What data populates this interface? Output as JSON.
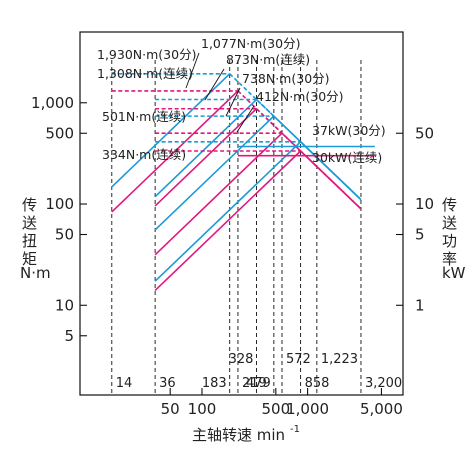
{
  "chart_data": {
    "type": "line",
    "x_scale": "log",
    "y_scale": "log",
    "xlabel_main": "主轴转速 min",
    "xlabel_sup": "-1",
    "ylabel_left": [
      "传",
      "送",
      "扭",
      "矩"
    ],
    "ylabel_left_unit": "N·m",
    "ylabel_right": [
      "传",
      "送",
      "功",
      "率"
    ],
    "ylabel_right_unit": "kW",
    "xlim": [
      7,
      8000
    ],
    "ylim_torque": [
      1.3,
      5000
    ],
    "ylim_power": [
      0.13,
      500
    ],
    "x_ticks": [
      {
        "value": 50,
        "label": "50"
      },
      {
        "value": 100,
        "label": "100"
      },
      {
        "value": 500,
        "label": "500"
      },
      {
        "value": 1000,
        "label": "1,000"
      },
      {
        "value": 5000,
        "label": "5,000"
      }
    ],
    "y_ticks_left": [
      {
        "value": 5,
        "label": "5"
      },
      {
        "value": 10,
        "label": "10"
      },
      {
        "value": 50,
        "label": "50"
      },
      {
        "value": 100,
        "label": "100"
      },
      {
        "value": 500,
        "label": "500"
      },
      {
        "value": 1000,
        "label": "1,000"
      }
    ],
    "y_ticks_right": [
      {
        "value": 1,
        "label": "1"
      },
      {
        "value": 5,
        "label": "5"
      },
      {
        "value": 10,
        "label": "10"
      },
      {
        "value": 50,
        "label": "50"
      }
    ],
    "speed_marks": [
      {
        "value": 14,
        "label": "14",
        "row": "bottom"
      },
      {
        "value": 36,
        "label": "36",
        "row": "bottom"
      },
      {
        "value": 183,
        "label": "183",
        "row": "bottom"
      },
      {
        "value": 219,
        "label": "219",
        "row": "bottom"
      },
      {
        "value": 479,
        "label": "479",
        "row": "bottom"
      },
      {
        "value": 858,
        "label": "858",
        "row": "bottom"
      },
      {
        "value": 3200,
        "label": "3,200",
        "row": "bottom"
      },
      {
        "value": 328,
        "label": "328",
        "row": "top"
      },
      {
        "value": 572,
        "label": "572",
        "row": "top"
      },
      {
        "value": 1223,
        "label": "1,223",
        "row": "top"
      }
    ],
    "series": [
      {
        "name": "1,930N·m(30分)",
        "mode": "30min",
        "torque": 1930,
        "corner": 183,
        "ramp_from": 14
      },
      {
        "name": "1,308N·m(连续)",
        "mode": "continuous",
        "torque": 1308,
        "corner": 219,
        "ramp_from": 14
      },
      {
        "name": "1,077N·m(30分)",
        "mode": "30min",
        "torque": 1077,
        "corner": 328,
        "ramp_from": 36
      },
      {
        "name": "873N·m(连续)",
        "mode": "continuous",
        "torque": 873,
        "corner": 328,
        "ramp_from": 36
      },
      {
        "name": "738N·m(30分)",
        "mode": "30min",
        "torque": 738,
        "corner": 479,
        "ramp_from": 36
      },
      {
        "name": "501N·m(连续)",
        "mode": "continuous",
        "torque": 501,
        "corner": 572,
        "ramp_from": 36
      },
      {
        "name": "412N·m(30分)",
        "mode": "30min",
        "torque": 412,
        "corner": 858,
        "ramp_from": 36
      },
      {
        "name": "334N·m(连续)",
        "mode": "continuous",
        "torque": 334,
        "corner": 858,
        "ramp_from": 36
      }
    ],
    "power_lines": [
      {
        "name": "37kW(30分)",
        "mode": "30min",
        "power": 37,
        "x_end": 3200
      },
      {
        "name": "30kW(连续)",
        "mode": "continuous",
        "power": 30,
        "x_end": 3200
      }
    ],
    "colors": {
      "30min": "#1a9ad6",
      "continuous": "#e0187d",
      "axis": "#111111"
    }
  }
}
